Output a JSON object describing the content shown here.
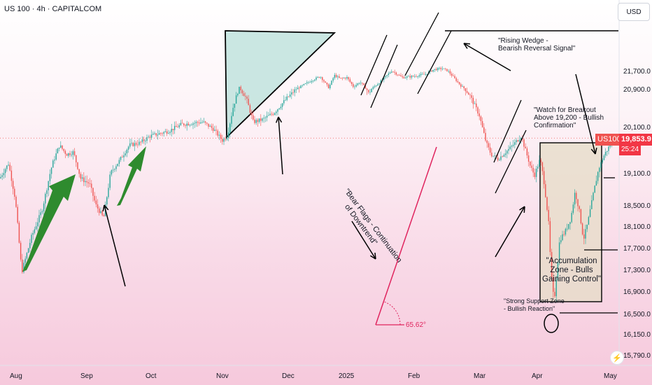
{
  "icons": {
    "lightning": "⚡"
  },
  "chart_data": {
    "type": "candlestick",
    "title": "US 100 · 4h · CAPITALCOM",
    "currency": "USD",
    "symbol_tag": "US100",
    "last_price": 19853.9,
    "last_price_label": "19,853.9",
    "countdown": "25:24",
    "y_ticks": [
      21700,
      20900,
      20100,
      19100,
      18500,
      18100,
      17700,
      17300,
      16900,
      16500,
      16150,
      15790
    ],
    "x_ticks": [
      "Aug",
      "Sep",
      "Oct",
      "Nov",
      "Dec",
      "2025",
      "Feb",
      "Mar",
      "Apr",
      "May"
    ],
    "colors": {
      "up": "#26a69a",
      "down": "#ef5350",
      "price": "#f23645",
      "arrow": "#2e8b2e",
      "triangle": "#b8e0da",
      "box": "#e6dcc7",
      "red_line": "#e0245e"
    },
    "annotations": {
      "wedge": "\"Rising Wedge -\nBearish Reversal Signal\"",
      "breakout": "\"Watch for Breakout\nAbove 19,200 - Bullish\nConfirmation\"",
      "accumulation": "\"Accumulation\nZone - Bulls\nGaining Control\"",
      "support": "\"Strong Support Zone\n- Bullish Reaction\"",
      "bear_flags": "\"Bear Flags - Continuation\nof Downtrend\"",
      "angle": "65.62°"
    }
  }
}
